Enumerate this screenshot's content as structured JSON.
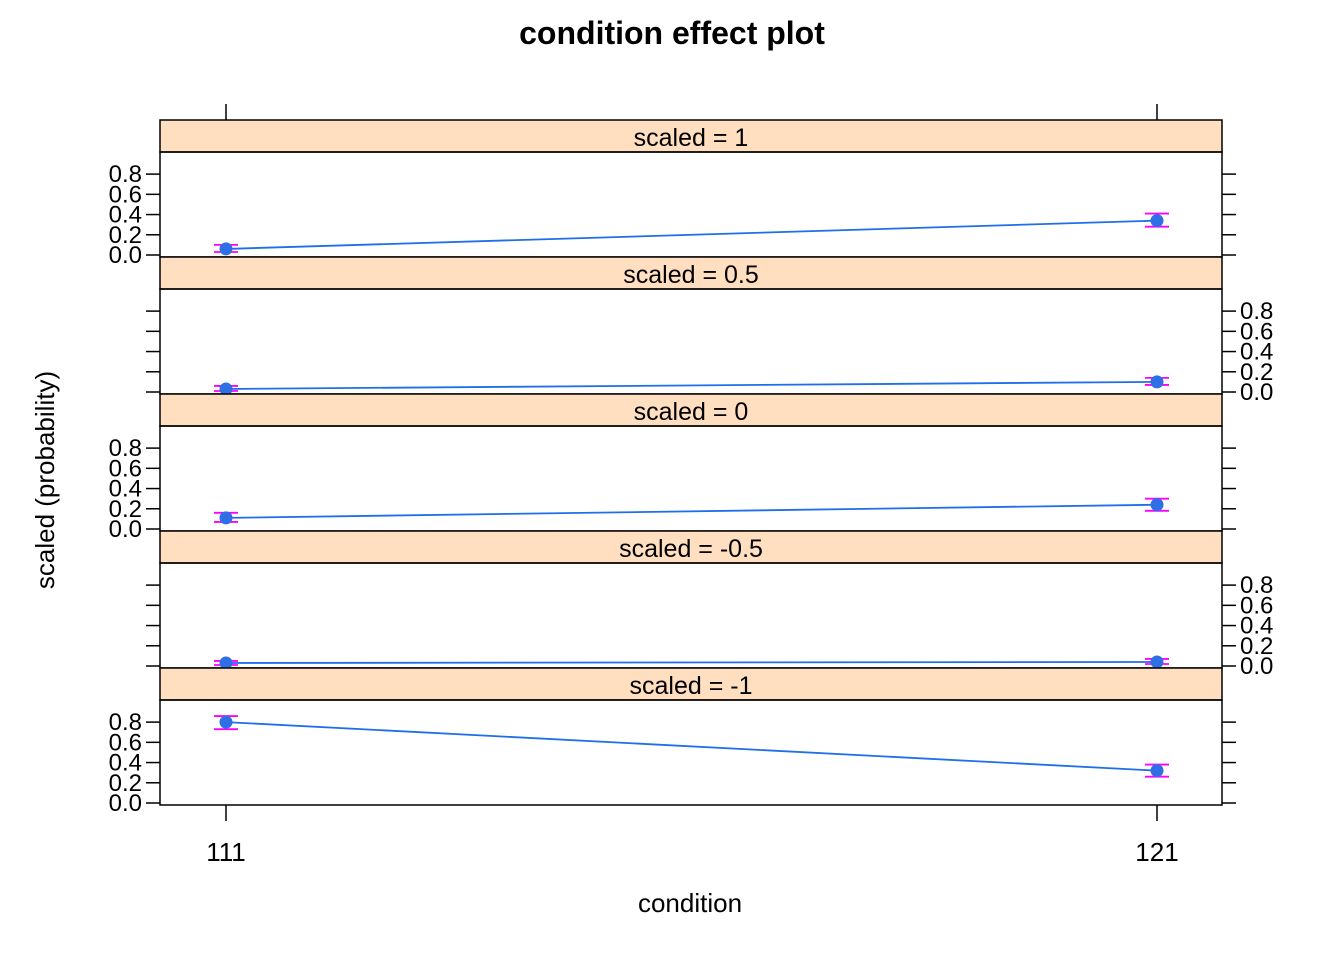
{
  "chart_data": {
    "type": "line",
    "title": "condition effect plot",
    "xlabel": "condition",
    "ylabel": "scaled (probability)",
    "categories": [
      "111",
      "121"
    ],
    "yticks": [
      "0.0",
      "0.2",
      "0.4",
      "0.6",
      "0.8"
    ],
    "ylim": [
      0,
      0.9
    ],
    "colors": {
      "line": "#1f6feb",
      "point": "#2e6fe6",
      "errorbar": "#ff00ff",
      "strip": "#ffdfc0"
    },
    "panels": [
      {
        "strip": "scaled = 1",
        "values": [
          0.06,
          0.34
        ],
        "lower": [
          0.03,
          0.28
        ],
        "upper": [
          0.1,
          0.41
        ]
      },
      {
        "strip": "scaled = 0.5",
        "values": [
          0.03,
          0.1
        ],
        "lower": [
          0.01,
          0.07
        ],
        "upper": [
          0.06,
          0.14
        ]
      },
      {
        "strip": "scaled = 0",
        "values": [
          0.11,
          0.24
        ],
        "lower": [
          0.07,
          0.18
        ],
        "upper": [
          0.16,
          0.3
        ]
      },
      {
        "strip": "scaled = -0.5",
        "values": [
          0.03,
          0.04
        ],
        "lower": [
          0.01,
          0.02
        ],
        "upper": [
          0.05,
          0.07
        ]
      },
      {
        "strip": "scaled = -1",
        "values": [
          0.8,
          0.32
        ],
        "lower": [
          0.73,
          0.26
        ],
        "upper": [
          0.86,
          0.38
        ]
      }
    ]
  }
}
